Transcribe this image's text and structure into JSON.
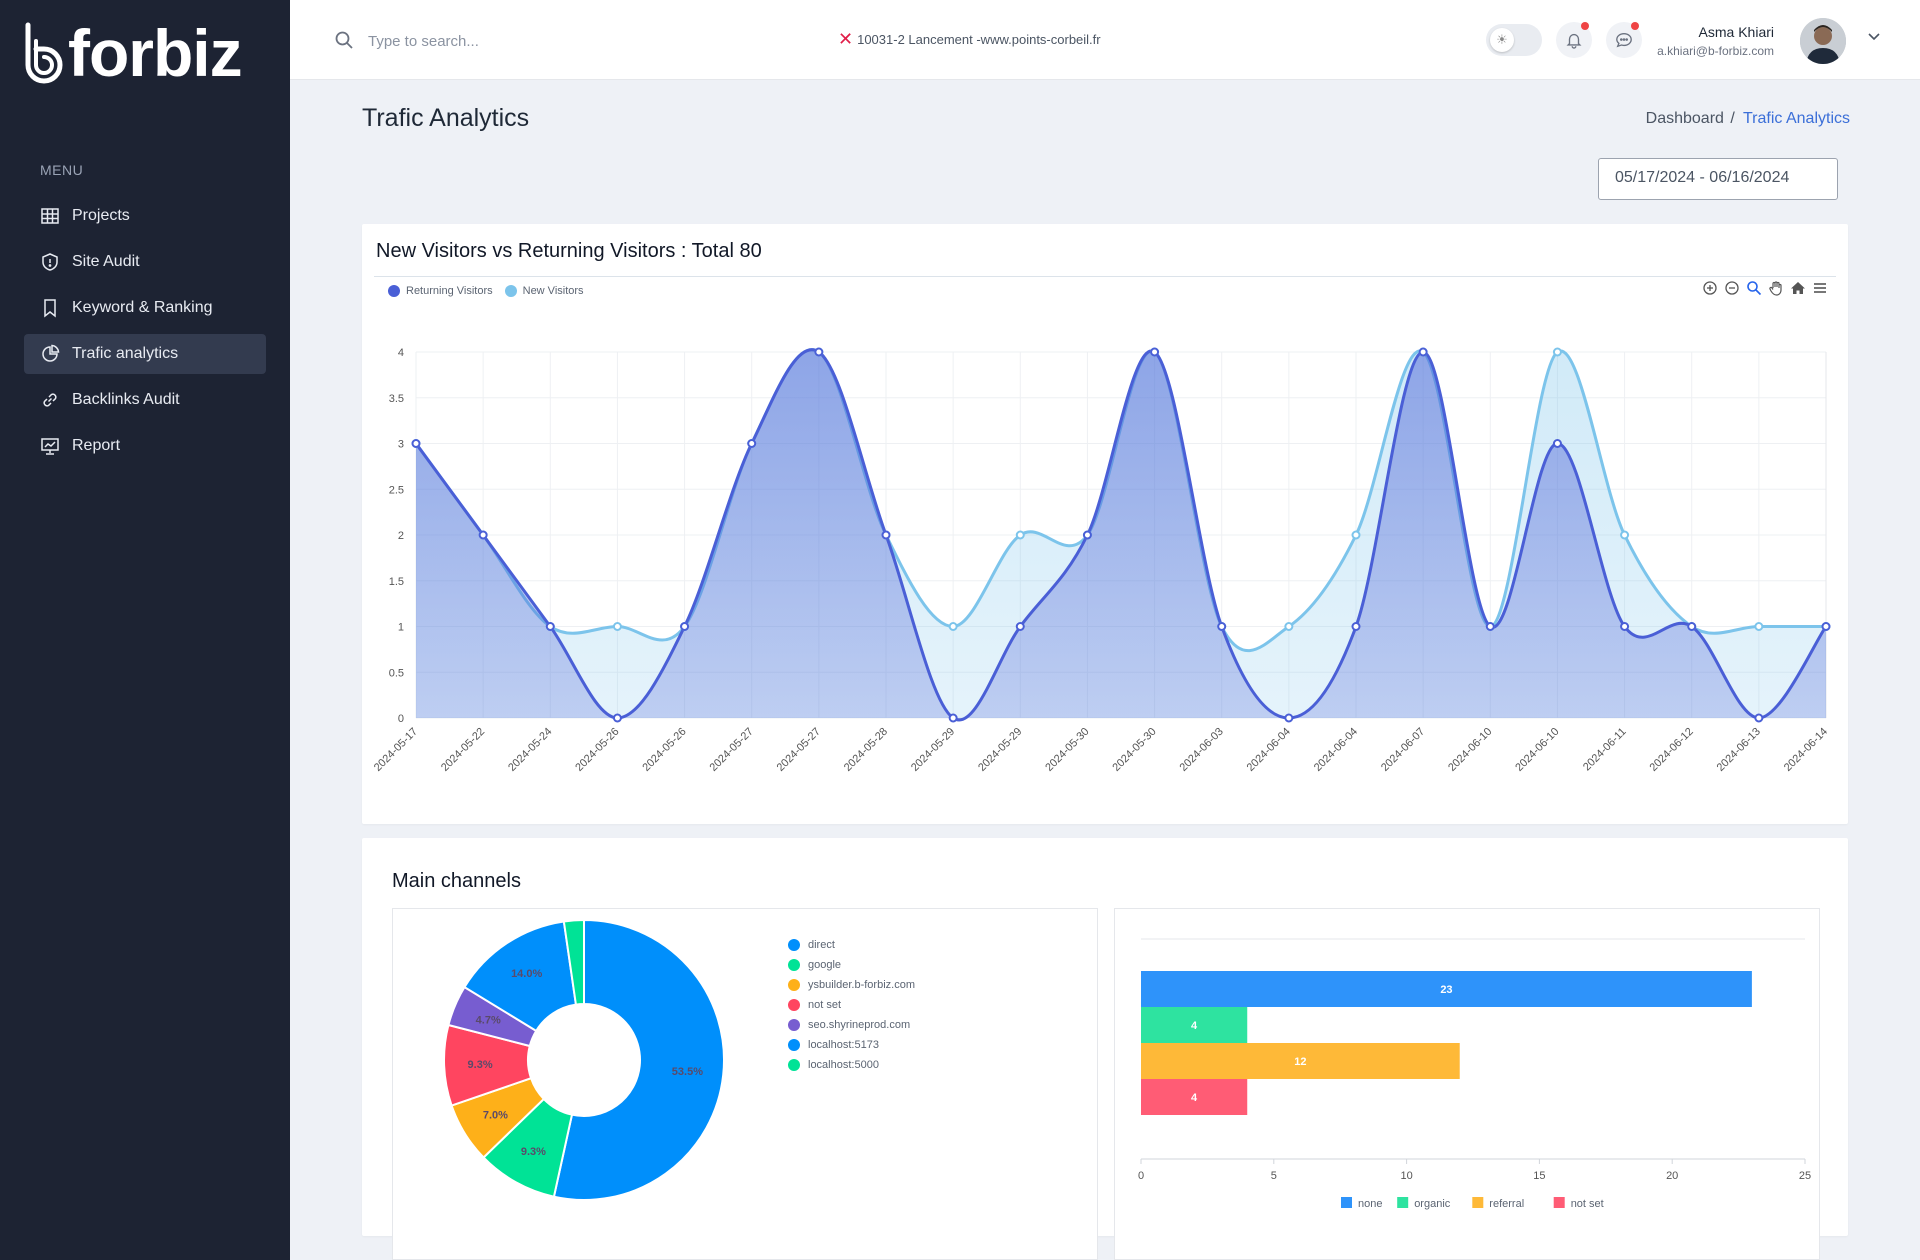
{
  "app": {
    "brand": "forbiz"
  },
  "sidebar": {
    "menu_title": "MENU",
    "items": [
      {
        "label": "Projects",
        "icon": "table-icon",
        "active": false
      },
      {
        "label": "Site Audit",
        "icon": "shield-icon",
        "active": false
      },
      {
        "label": "Keyword & Ranking",
        "icon": "bookmark-icon",
        "active": false
      },
      {
        "label": "Trafic analytics",
        "icon": "pie-chart-icon",
        "active": true
      },
      {
        "label": "Backlinks Audit",
        "icon": "link-icon",
        "active": false
      },
      {
        "label": "Report",
        "icon": "presentation-chart-icon",
        "active": false
      }
    ]
  },
  "header": {
    "search": {
      "placeholder": "Type to search..."
    },
    "project": "10031-2 Lancement -www.points-corbeil.fr",
    "user": {
      "name": "Asma Khiari",
      "email": "a.khiari@b-forbiz.com"
    }
  },
  "page": {
    "title": "Trafic Analytics",
    "breadcrumb": {
      "root": "Dashboard",
      "separator": "/",
      "current": "Trafic Analytics"
    },
    "date_range": "05/17/2024 - 06/16/2024"
  },
  "visitors_card": {
    "title": "New Visitors vs Returning Visitors : Total 80"
  },
  "channels_card": {
    "title": "Main channels"
  },
  "colors": {
    "returning": "#4a5fd6",
    "new": "#7cc4eb",
    "sidebar": "#1d2333",
    "accent": "#3b6fd8"
  },
  "chart_data": [
    {
      "type": "area",
      "legend_position": "top-left",
      "grid": true,
      "categories": [
        "2024-05-17",
        "2024-05-22",
        "2024-05-24",
        "2024-05-26",
        "2024-05-26",
        "2024-05-27",
        "2024-05-27",
        "2024-05-28",
        "2024-05-29",
        "2024-05-29",
        "2024-05-30",
        "2024-05-30",
        "2024-06-03",
        "2024-06-04",
        "2024-06-04",
        "2024-06-07",
        "2024-06-10",
        "2024-06-10",
        "2024-06-11",
        "2024-06-12",
        "2024-06-13",
        "2024-06-14"
      ],
      "ylim": [
        0,
        4
      ],
      "yticks": [
        "0",
        "0.5",
        "1",
        "1.5",
        "2",
        "2.5",
        "3",
        "3.5",
        "4"
      ],
      "series": [
        {
          "name": "Returning Visitors",
          "color": "#4a5fd6",
          "values": [
            3,
            2,
            1,
            0,
            1,
            3,
            4,
            2,
            0,
            1,
            2,
            4,
            1,
            0,
            1,
            4,
            1,
            3,
            1,
            1,
            0,
            1
          ]
        },
        {
          "name": "New Visitors",
          "color": "#7cc4eb",
          "values": [
            3,
            2,
            1,
            1,
            1,
            3,
            4,
            2,
            1,
            2,
            2,
            4,
            1,
            1,
            2,
            4,
            1,
            4,
            2,
            1,
            1,
            1
          ]
        }
      ]
    },
    {
      "type": "pie",
      "donut": true,
      "legend_position": "right",
      "slices": [
        {
          "label": "direct",
          "value": 53.5,
          "display": "53.5%",
          "color": "#008ffb"
        },
        {
          "label": "google",
          "value": 9.3,
          "display": "9.3%",
          "color": "#00e396"
        },
        {
          "label": "ysbuilder.b-forbiz.com",
          "value": 7.0,
          "display": "7.0%",
          "color": "#feb019"
        },
        {
          "label": "not set",
          "value": 9.3,
          "display": "9.3%",
          "color": "#ff4560"
        },
        {
          "label": "seo.shyrineprod.com",
          "value": 4.7,
          "display": "4.7%",
          "color": "#775dd0"
        },
        {
          "label": "localhost:5173",
          "value": 14.0,
          "display": "14.0%",
          "color": "#008ffb"
        },
        {
          "label": "localhost:5000",
          "value": 2.3,
          "display": "",
          "color": "#00e396"
        }
      ]
    },
    {
      "type": "bar",
      "orientation": "horizontal",
      "legend_position": "bottom",
      "xlim": [
        0,
        25
      ],
      "xticks": [
        "0",
        "5",
        "10",
        "15",
        "20",
        "25"
      ],
      "bars": [
        {
          "label": "none",
          "value": 23,
          "color": "#2e93fa"
        },
        {
          "label": "organic",
          "value": 4,
          "color": "#2ee3a0"
        },
        {
          "label": "referral",
          "value": 12,
          "color": "#feb938"
        },
        {
          "label": "not set",
          "value": 4,
          "color": "#ff5c75"
        }
      ]
    }
  ]
}
